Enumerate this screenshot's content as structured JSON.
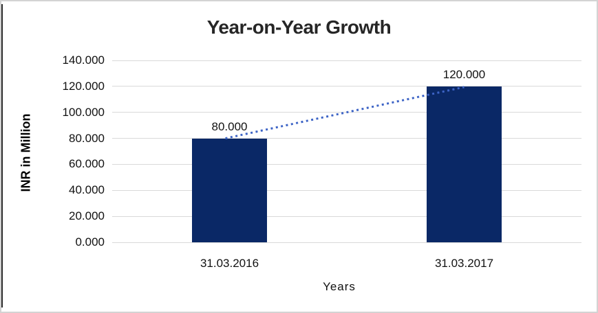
{
  "chart": {
    "frame_border_color": "#d3d3d3",
    "left_edge_color": "#2b2b2b",
    "background": "#ffffff"
  },
  "chart_data": {
    "type": "bar",
    "title": "Year-on-Year Growth",
    "xlabel": "Years",
    "ylabel": "INR in Million",
    "categories": [
      "31.03.2016",
      "31.03.2017"
    ],
    "values": [
      80,
      120
    ],
    "data_labels": [
      "80.000",
      "120.000"
    ],
    "y_ticks": [
      "140.000",
      "120.000",
      "100.000",
      "80.000",
      "60.000",
      "40.000",
      "20.000",
      "0.000"
    ],
    "ylim": [
      0,
      140
    ],
    "grid": true,
    "legend": "none",
    "bar_color": "#0a2866",
    "grid_color": "#d9d9d9",
    "title_color": "#262626",
    "axis_text_color": "#111111",
    "trendline": {
      "style": "dotted",
      "color": "#3d64c6",
      "from_value": 80,
      "to_value": 120
    }
  }
}
